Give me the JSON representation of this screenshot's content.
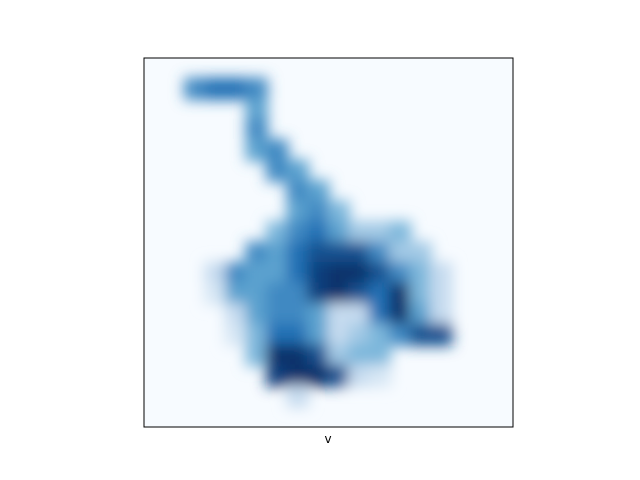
{
  "chart_data": {
    "type": "heatmap",
    "title": "",
    "xlabel": "v",
    "ylabel": "",
    "colormap": "Blues",
    "colors": {
      "background": "#f7fbff",
      "low": "#c6dbef",
      "mid": "#6baed6",
      "high": "#2171b5",
      "max": "#08306b"
    },
    "ticks": "none",
    "grid": false,
    "interpolation": "smooth",
    "value_range": [
      0,
      1
    ],
    "grid_shape": [
      18,
      18
    ],
    "values": [
      [
        0,
        0,
        0,
        0,
        0,
        0,
        0,
        0,
        0,
        0,
        0,
        0,
        0,
        0,
        0,
        0,
        0,
        0
      ],
      [
        0,
        0,
        0.7,
        0.8,
        0.8,
        0.7,
        0,
        0,
        0,
        0,
        0,
        0,
        0,
        0,
        0,
        0,
        0,
        0
      ],
      [
        0,
        0,
        0,
        0,
        0,
        0.6,
        0,
        0,
        0,
        0,
        0,
        0,
        0,
        0,
        0,
        0,
        0,
        0
      ],
      [
        0,
        0,
        0,
        0,
        0,
        0.7,
        0,
        0,
        0,
        0,
        0,
        0,
        0,
        0,
        0,
        0,
        0,
        0
      ],
      [
        0,
        0,
        0,
        0,
        0,
        0.6,
        0.7,
        0,
        0,
        0,
        0,
        0,
        0,
        0,
        0,
        0,
        0,
        0
      ],
      [
        0,
        0,
        0,
        0,
        0,
        0,
        0.7,
        0.6,
        0,
        0,
        0,
        0,
        0,
        0,
        0,
        0,
        0,
        0
      ],
      [
        0,
        0,
        0,
        0,
        0,
        0,
        0,
        0.7,
        0.6,
        0,
        0,
        0,
        0,
        0,
        0,
        0,
        0,
        0
      ],
      [
        0,
        0,
        0,
        0,
        0,
        0,
        0,
        0.6,
        0.7,
        0.5,
        0,
        0,
        0,
        0,
        0,
        0,
        0,
        0
      ],
      [
        0,
        0,
        0,
        0,
        0,
        0,
        0.5,
        0.7,
        0.8,
        0.6,
        0.4,
        0.4,
        0.5,
        0,
        0,
        0,
        0,
        0
      ],
      [
        0,
        0,
        0,
        0,
        0,
        0.7,
        0.6,
        0.8,
        0.9,
        0.9,
        0.9,
        0.7,
        0.4,
        0.4,
        0,
        0,
        0,
        0
      ],
      [
        0,
        0,
        0,
        0.3,
        0.7,
        0.6,
        0.6,
        0.8,
        0.95,
        1,
        1,
        0.9,
        0.7,
        0.5,
        0.3,
        0,
        0,
        0
      ],
      [
        0,
        0,
        0,
        0.2,
        0.6,
        0.6,
        0.7,
        0.7,
        0.95,
        1,
        0.9,
        0.8,
        1,
        0.5,
        0.3,
        0,
        0,
        0
      ],
      [
        0,
        0,
        0,
        0,
        0.3,
        0.6,
        0.7,
        0.7,
        0.6,
        0.3,
        0.3,
        0.8,
        1,
        0.6,
        0.3,
        0,
        0,
        0
      ],
      [
        0,
        0,
        0,
        0,
        0.2,
        0.5,
        0.8,
        0.8,
        0.6,
        0.3,
        0.4,
        0.5,
        0.7,
        0.9,
        0.9,
        0,
        0,
        0
      ],
      [
        0,
        0,
        0,
        0,
        0,
        0.5,
        1,
        1,
        0.9,
        0.4,
        0.5,
        0.5,
        0,
        0,
        0,
        0,
        0,
        0
      ],
      [
        0,
        0,
        0,
        0,
        0,
        0,
        0.95,
        1,
        1,
        0.9,
        0.3,
        0.2,
        0,
        0,
        0,
        0,
        0,
        0
      ],
      [
        0,
        0,
        0,
        0,
        0,
        0,
        0,
        0.3,
        0,
        0,
        0,
        0,
        0,
        0,
        0,
        0,
        0,
        0
      ],
      [
        0,
        0,
        0,
        0,
        0,
        0,
        0,
        0,
        0,
        0,
        0,
        0,
        0,
        0,
        0,
        0,
        0,
        0
      ]
    ]
  }
}
